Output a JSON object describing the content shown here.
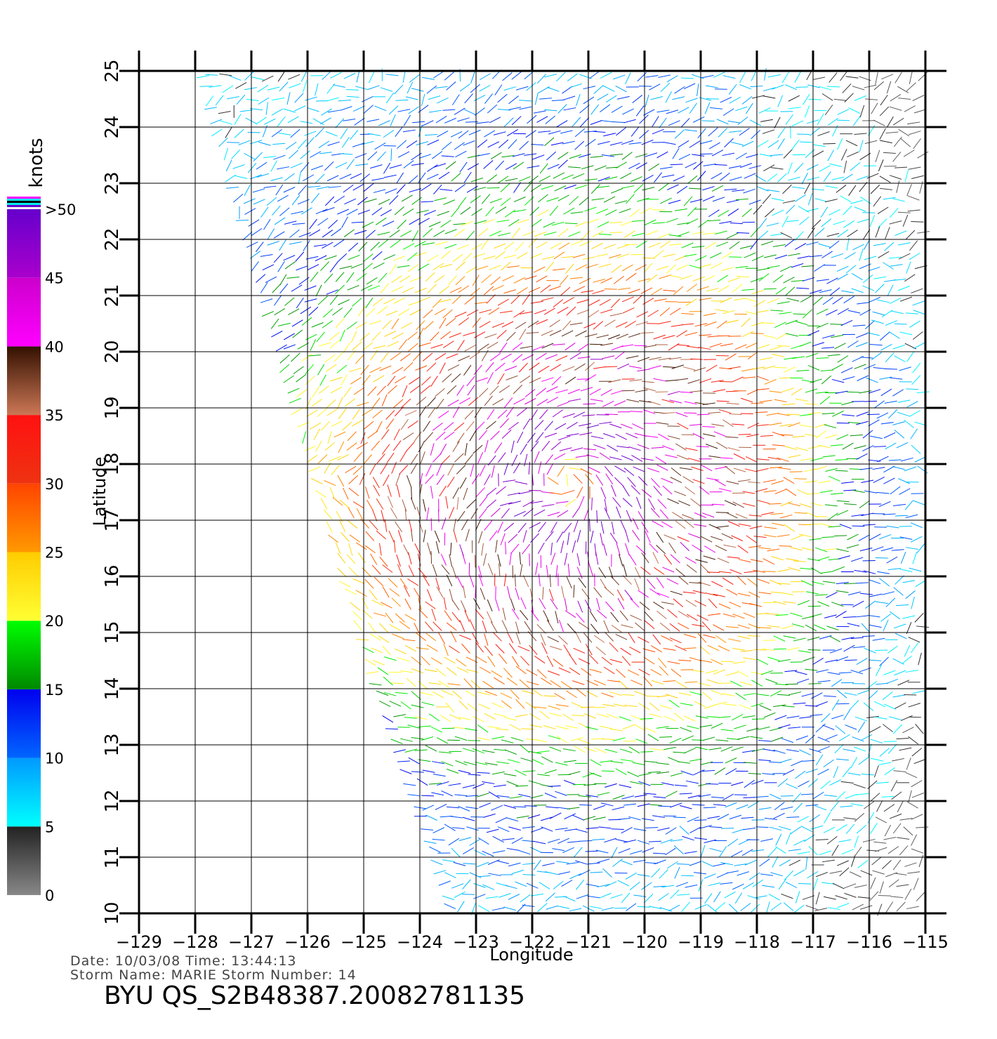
{
  "chart_data": {
    "type": "wind-vector map",
    "xlabel": "Longitude",
    "ylabel": "Latitude",
    "x_ticks": [
      -129,
      -128,
      -127,
      -126,
      -125,
      -124,
      -123,
      -122,
      -121,
      -120,
      -119,
      -118,
      -117,
      -116,
      -115
    ],
    "y_ticks": [
      10,
      11,
      12,
      13,
      14,
      15,
      16,
      17,
      18,
      19,
      20,
      21,
      22,
      23,
      24,
      25
    ],
    "x_tick_labels": [
      "−129",
      "−128",
      "−127",
      "−126",
      "−125",
      "−124",
      "−123",
      "−122",
      "−121",
      "−120",
      "−119",
      "−118",
      "−117",
      "−116",
      "−115"
    ],
    "y_tick_labels": [
      "10",
      "11",
      "12",
      "13",
      "14",
      "15",
      "16",
      "17",
      "18",
      "19",
      "20",
      "21",
      "22",
      "23",
      "24",
      "25"
    ],
    "xlim": [
      -129,
      -115
    ],
    "ylim": [
      10,
      25
    ],
    "grid": true,
    "storm_center": {
      "lon": -121.3,
      "lat": 17.7
    },
    "legend": {
      "title": "knots",
      "placement": "left",
      "labels": [
        "0",
        "5",
        "10",
        "15",
        "20",
        "25",
        "30",
        "35",
        "40",
        "45",
        ">50"
      ],
      "bands": [
        {
          "from": 0,
          "to": 5,
          "colors": [
            "#888888",
            "#222222"
          ]
        },
        {
          "from": 5,
          "to": 10,
          "colors": [
            "#00ffff",
            "#0099ff"
          ]
        },
        {
          "from": 10,
          "to": 15,
          "colors": [
            "#0066ff",
            "#0000ee"
          ]
        },
        {
          "from": 15,
          "to": 20,
          "colors": [
            "#008800",
            "#00ff00"
          ]
        },
        {
          "from": 20,
          "to": 25,
          "colors": [
            "#ffff33",
            "#ffcc00"
          ]
        },
        {
          "from": 25,
          "to": 30,
          "colors": [
            "#ff9900",
            "#ff4400"
          ]
        },
        {
          "from": 30,
          "to": 35,
          "colors": [
            "#ee3311",
            "#ff1111"
          ]
        },
        {
          "from": 35,
          "to": 40,
          "colors": [
            "#cc7755",
            "#331100"
          ]
        },
        {
          "from": 40,
          "to": 45,
          "colors": [
            "#ff00ff",
            "#cc00cc"
          ]
        },
        {
          "from": 45,
          "to": 50,
          "colors": [
            "#aa00cc",
            "#6600cc"
          ]
        }
      ]
    }
  },
  "info": {
    "line1": "Date: 10/03/08   Time: 13:44:13",
    "line2": "Storm  Name: MARIE   Storm  Number: 14",
    "id": "BYU  QS_S2B48387.20082781135"
  }
}
